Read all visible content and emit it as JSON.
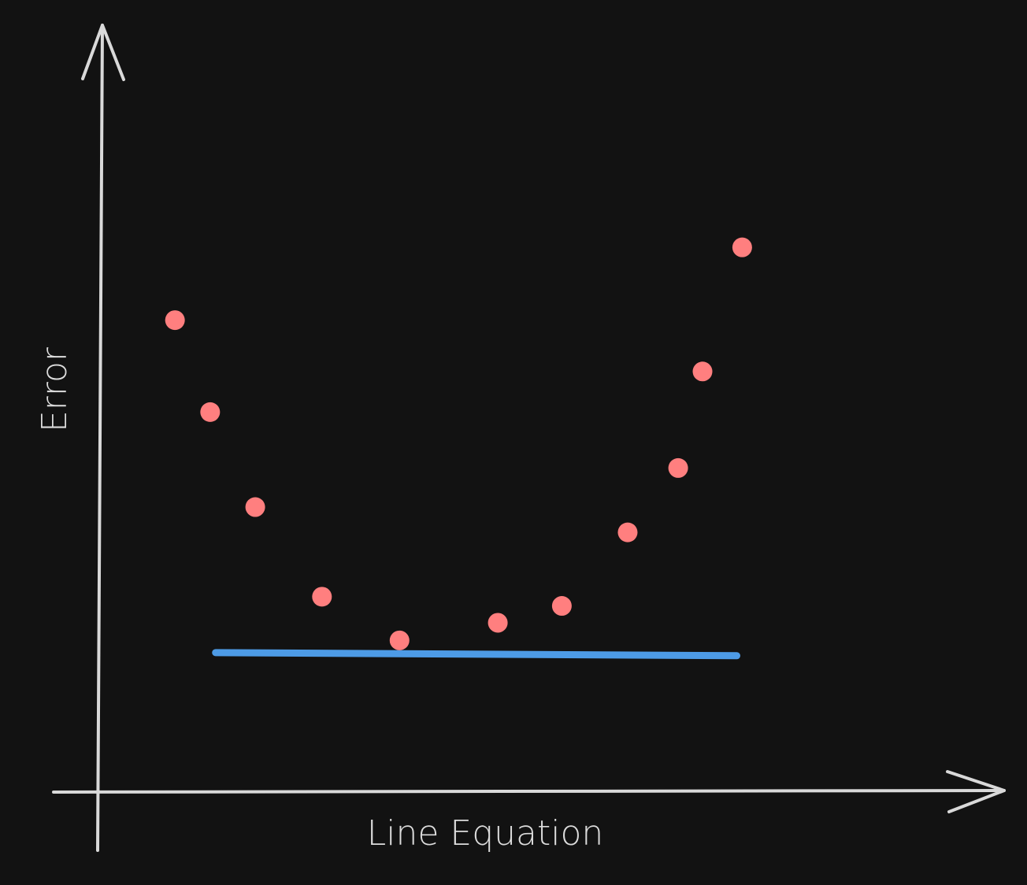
{
  "chart_data": {
    "type": "scatter",
    "xlabel": "Line Equation",
    "ylabel": "Error",
    "title": "",
    "xlim": [
      0,
      100
    ],
    "ylim": [
      0,
      100
    ],
    "grid": false,
    "legend": "none",
    "series": [
      {
        "x": [
          8.4,
          12.3,
          17.3,
          24.7,
          33.3,
          44.2,
          51.3,
          58.6,
          64.2,
          66.9,
          71.3
        ],
        "y": [
          61.5,
          49.5,
          37.1,
          25.4,
          19.7,
          22.0,
          24.2,
          33.8,
          42.2,
          54.8,
          71.0
        ],
        "color": "#ff7f7f"
      }
    ],
    "reference_lines": [
      {
        "type": "line",
        "x": [
          12.9,
          70.7
        ],
        "y": [
          18.1,
          17.7
        ],
        "color": "#4d9be6"
      }
    ]
  },
  "colors": {
    "background": "#121212",
    "axis": "#d9d9d9",
    "text": "#dcdcdc"
  }
}
